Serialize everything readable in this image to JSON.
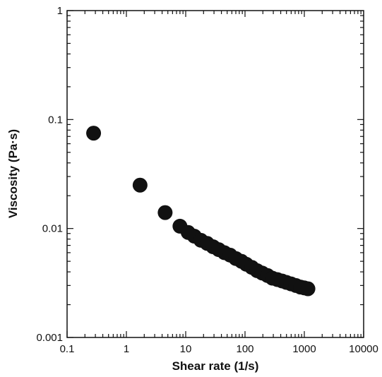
{
  "chart_data": {
    "type": "scatter",
    "xlabel": "Shear rate (1/s)",
    "ylabel": "Viscosity (Pa·s)",
    "x_scale": "log",
    "y_scale": "log",
    "xlim": [
      0.1,
      10000
    ],
    "ylim": [
      0.001,
      1
    ],
    "grid": false,
    "x_ticks": [
      {
        "value": 0.1,
        "label": "0.1"
      },
      {
        "value": 1,
        "label": "1"
      },
      {
        "value": 10,
        "label": "10"
      },
      {
        "value": 100,
        "label": "100"
      },
      {
        "value": 1000,
        "label": "1000"
      },
      {
        "value": 10000,
        "label": "10000"
      }
    ],
    "y_ticks": [
      {
        "value": 0.001,
        "label": "0.001"
      },
      {
        "value": 0.01,
        "label": "0.01"
      },
      {
        "value": 0.1,
        "label": "0.1"
      },
      {
        "value": 1,
        "label": "1"
      }
    ],
    "marker_color": "#111111",
    "series": [
      {
        "points": [
          {
            "x": 0.28,
            "y": 0.075
          },
          {
            "x": 1.7,
            "y": 0.025
          },
          {
            "x": 4.5,
            "y": 0.014
          },
          {
            "x": 8,
            "y": 0.0105
          },
          {
            "x": 11,
            "y": 0.0092
          },
          {
            "x": 14,
            "y": 0.0085
          },
          {
            "x": 18,
            "y": 0.0078
          },
          {
            "x": 23,
            "y": 0.0073
          },
          {
            "x": 29,
            "y": 0.0068
          },
          {
            "x": 36,
            "y": 0.0064
          },
          {
            "x": 45,
            "y": 0.006
          },
          {
            "x": 56,
            "y": 0.0057
          },
          {
            "x": 70,
            "y": 0.0053
          },
          {
            "x": 87,
            "y": 0.005
          },
          {
            "x": 105,
            "y": 0.0047
          },
          {
            "x": 130,
            "y": 0.0044
          },
          {
            "x": 160,
            "y": 0.0041
          },
          {
            "x": 195,
            "y": 0.0039
          },
          {
            "x": 240,
            "y": 0.0037
          },
          {
            "x": 290,
            "y": 0.0035
          },
          {
            "x": 350,
            "y": 0.0034
          },
          {
            "x": 420,
            "y": 0.0033
          },
          {
            "x": 500,
            "y": 0.0032
          },
          {
            "x": 600,
            "y": 0.0031
          },
          {
            "x": 720,
            "y": 0.003
          },
          {
            "x": 860,
            "y": 0.0029
          },
          {
            "x": 1000,
            "y": 0.00285
          },
          {
            "x": 1150,
            "y": 0.0028
          }
        ]
      }
    ]
  }
}
